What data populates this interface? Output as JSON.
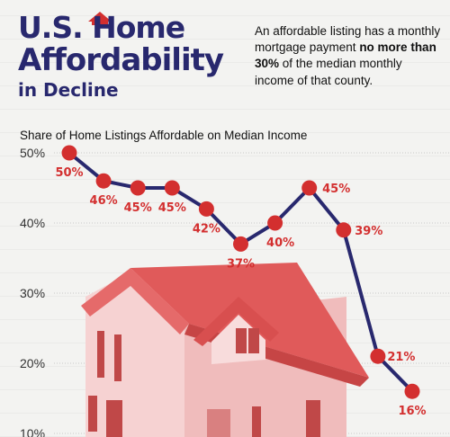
{
  "header": {
    "title_line1": "U.S. Home",
    "title_line2": "Affordability",
    "title_line3": "in Decline"
  },
  "note": {
    "part1": "An affordable listing has a monthly mortgage payment ",
    "bold": "no more than 30%",
    "part2": " of the median monthly income of that county."
  },
  "colors": {
    "navy": "#28286e",
    "red": "#d32f2f",
    "house_red": "#e05a5a"
  },
  "chart_data": {
    "type": "line",
    "title": "Share of Home Listings Affordable on Median Income",
    "y_ticks": [
      "50%",
      "40%",
      "30%",
      "20%",
      "10%"
    ],
    "ylim": [
      10,
      50
    ],
    "values": [
      50,
      46,
      45,
      45,
      42,
      37,
      40,
      45,
      39,
      21,
      16
    ],
    "labels": [
      "50%",
      "46%",
      "45%",
      "45%",
      "42%",
      "37%",
      "40%",
      "45%",
      "39%",
      "21%",
      "16%"
    ],
    "grid": true
  }
}
